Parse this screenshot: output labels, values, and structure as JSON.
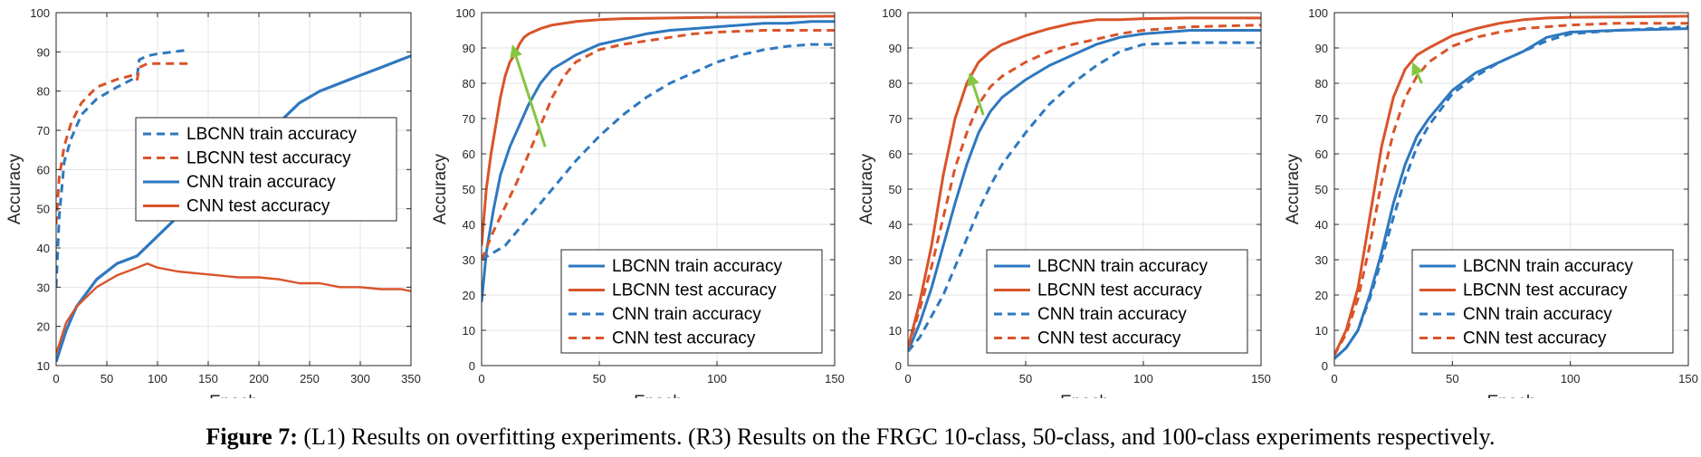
{
  "colors": {
    "lbcnn": "#2e78bf",
    "cnn": "#d9542a",
    "arrow": "#86c540",
    "grid": "#e3e3e3",
    "axis": "#262626"
  },
  "caption": {
    "label": "Figure 7:",
    "text": "(L1) Results on overfitting experiments. (R3) Results on the FRGC 10-class, 50-class, and 100-class experiments respectively."
  },
  "chart_data": [
    {
      "type": "line",
      "xlabel": "Epoch",
      "ylabel": "Accuracy",
      "xlim": [
        0,
        350
      ],
      "ylim": [
        10,
        100
      ],
      "xticks": [
        0,
        50,
        100,
        150,
        200,
        250,
        300,
        350
      ],
      "yticks": [
        10,
        20,
        30,
        40,
        50,
        60,
        70,
        80,
        90,
        100
      ],
      "grid": true,
      "legend_position": "center-right",
      "series": [
        {
          "name": "LBCNN train accuracy",
          "color": "lbcnn",
          "dash": true,
          "width": 3,
          "x": [
            0,
            3,
            8,
            15,
            25,
            40,
            60,
            75,
            80,
            82,
            90,
            100,
            115,
            130
          ],
          "y": [
            30,
            48,
            62,
            68,
            74,
            78,
            81,
            83,
            84,
            88,
            89,
            89.5,
            90,
            90.5
          ]
        },
        {
          "name": "LBCNN test accuracy",
          "color": "cnn",
          "dash": true,
          "width": 3,
          "x": [
            0,
            3,
            8,
            15,
            25,
            40,
            60,
            75,
            80,
            82,
            90,
            100,
            115,
            130
          ],
          "y": [
            46,
            58,
            66,
            72,
            77,
            81,
            83,
            84,
            83,
            86,
            87,
            87,
            87,
            87
          ]
        },
        {
          "name": "CNN train accuracy",
          "color": "lbcnn",
          "dash": false,
          "width": 3.2,
          "x": [
            0,
            10,
            20,
            40,
            60,
            80,
            100,
            120,
            140,
            160,
            180,
            200,
            220,
            240,
            260,
            280,
            300,
            320,
            340,
            350
          ],
          "y": [
            11,
            19,
            25,
            32,
            36,
            38,
            43,
            48,
            52,
            57,
            61,
            66,
            72,
            77,
            80,
            82,
            84,
            86,
            88,
            89
          ]
        },
        {
          "name": "CNN test accuracy",
          "color": "cnn",
          "dash": false,
          "width": 2.4,
          "x": [
            0,
            10,
            20,
            40,
            60,
            80,
            90,
            100,
            120,
            140,
            160,
            180,
            200,
            220,
            240,
            260,
            280,
            300,
            320,
            340,
            350
          ],
          "y": [
            13,
            21,
            25,
            30,
            33,
            35,
            36,
            35,
            34,
            33.5,
            33,
            32.5,
            32.5,
            32,
            31,
            31,
            30,
            30,
            29.5,
            29.5,
            29
          ]
        }
      ],
      "legend_order": [
        0,
        1,
        2,
        3
      ]
    },
    {
      "type": "line",
      "xlabel": "Epoch",
      "ylabel": "Accuracy",
      "xlim": [
        0,
        150
      ],
      "ylim": [
        0,
        100
      ],
      "xticks": [
        0,
        50,
        100,
        150
      ],
      "yticks": [
        0,
        10,
        20,
        30,
        40,
        50,
        60,
        70,
        80,
        90,
        100
      ],
      "grid": true,
      "legend_position": "bottom-right",
      "series": [
        {
          "name": "LBCNN train accuracy",
          "color": "lbcnn",
          "dash": false,
          "width": 3,
          "x": [
            0,
            2,
            5,
            8,
            12,
            16,
            20,
            25,
            30,
            35,
            40,
            50,
            60,
            70,
            80,
            90,
            100,
            110,
            120,
            130,
            140,
            150
          ],
          "y": [
            18,
            32,
            44,
            54,
            62,
            68,
            74,
            80,
            84,
            86,
            88,
            91,
            92.5,
            94,
            95,
            95.5,
            96,
            96.5,
            97,
            97,
            97.5,
            97.5
          ]
        },
        {
          "name": "LBCNN test accuracy",
          "color": "cnn",
          "dash": false,
          "width": 3,
          "x": [
            0,
            2,
            4,
            6,
            8,
            10,
            12,
            14,
            16,
            18,
            20,
            25,
            30,
            40,
            50,
            60,
            80,
            100,
            120,
            150
          ],
          "y": [
            34,
            50,
            60,
            68,
            76,
            82,
            86,
            88,
            91,
            93,
            94,
            95.5,
            96.5,
            97.5,
            98,
            98.3,
            98.5,
            98.7,
            98.8,
            99
          ]
        },
        {
          "name": "CNN train accuracy",
          "color": "lbcnn",
          "dash": true,
          "width": 3,
          "x": [
            0,
            5,
            10,
            15,
            20,
            25,
            30,
            35,
            40,
            50,
            60,
            70,
            80,
            90,
            100,
            110,
            120,
            130,
            140,
            150
          ],
          "y": [
            30,
            32,
            34,
            38,
            42,
            46,
            50,
            54,
            58,
            65,
            71,
            76,
            80,
            83,
            86,
            88,
            89.5,
            90.5,
            91,
            91
          ]
        },
        {
          "name": "CNN test accuracy",
          "color": "cnn",
          "dash": true,
          "width": 3,
          "x": [
            0,
            5,
            10,
            15,
            20,
            25,
            30,
            35,
            40,
            50,
            60,
            70,
            80,
            90,
            100,
            120,
            150
          ],
          "y": [
            30,
            38,
            45,
            52,
            60,
            68,
            76,
            82,
            86,
            89.5,
            91,
            92,
            93,
            94,
            94.5,
            95,
            95
          ]
        }
      ],
      "legend_order": [
        0,
        1,
        2,
        3
      ]
    },
    {
      "type": "line",
      "xlabel": "Epoch",
      "ylabel": "Accuracy",
      "xlim": [
        0,
        150
      ],
      "ylim": [
        0,
        100
      ],
      "xticks": [
        0,
        50,
        100,
        150
      ],
      "yticks": [
        0,
        10,
        20,
        30,
        40,
        50,
        60,
        70,
        80,
        90,
        100
      ],
      "grid": true,
      "legend_position": "bottom-right",
      "series": [
        {
          "name": "LBCNN train accuracy",
          "color": "lbcnn",
          "dash": false,
          "width": 3,
          "x": [
            0,
            5,
            10,
            15,
            20,
            25,
            30,
            35,
            40,
            50,
            60,
            70,
            80,
            90,
            100,
            120,
            150
          ],
          "y": [
            4,
            12,
            22,
            34,
            46,
            57,
            66,
            72,
            76,
            81,
            85,
            88,
            91,
            93,
            94,
            95,
            95
          ]
        },
        {
          "name": "LBCNN test accuracy",
          "color": "cnn",
          "dash": false,
          "width": 3,
          "x": [
            0,
            5,
            10,
            15,
            20,
            25,
            30,
            35,
            40,
            50,
            60,
            70,
            80,
            90,
            100,
            120,
            150
          ],
          "y": [
            5,
            18,
            34,
            54,
            70,
            80,
            86,
            89,
            91,
            93.5,
            95.5,
            97,
            98,
            98,
            98.3,
            98.5,
            98.5
          ]
        },
        {
          "name": "CNN train accuracy",
          "color": "lbcnn",
          "dash": true,
          "width": 3,
          "x": [
            0,
            5,
            10,
            15,
            20,
            25,
            30,
            35,
            40,
            50,
            60,
            70,
            80,
            90,
            100,
            120,
            150
          ],
          "y": [
            4,
            8,
            14,
            20,
            28,
            36,
            44,
            51,
            57,
            66,
            74,
            80,
            85,
            89,
            91,
            91.5,
            91.5
          ]
        },
        {
          "name": "CNN test accuracy",
          "color": "cnn",
          "dash": true,
          "width": 3,
          "x": [
            0,
            5,
            10,
            15,
            20,
            25,
            30,
            35,
            40,
            50,
            60,
            70,
            80,
            90,
            100,
            120,
            150
          ],
          "y": [
            5,
            16,
            28,
            42,
            56,
            66,
            74,
            79,
            82,
            86,
            89,
            91,
            92.5,
            94,
            95,
            96,
            96.5
          ]
        }
      ],
      "legend_order": [
        0,
        1,
        2,
        3
      ]
    },
    {
      "type": "line",
      "xlabel": "Epoch",
      "ylabel": "Accuracy",
      "xlim": [
        0,
        150
      ],
      "ylim": [
        0,
        100
      ],
      "xticks": [
        0,
        50,
        100,
        150
      ],
      "yticks": [
        0,
        10,
        20,
        30,
        40,
        50,
        60,
        70,
        80,
        90,
        100
      ],
      "grid": true,
      "legend_position": "bottom-right",
      "series": [
        {
          "name": "LBCNN train accuracy",
          "color": "lbcnn",
          "dash": false,
          "width": 3,
          "x": [
            0,
            5,
            10,
            15,
            20,
            25,
            30,
            35,
            40,
            50,
            60,
            70,
            80,
            90,
            100,
            120,
            150
          ],
          "y": [
            2,
            5,
            10,
            20,
            32,
            46,
            57,
            65,
            70,
            78,
            83,
            86,
            89,
            93,
            94.5,
            95,
            95.5
          ]
        },
        {
          "name": "LBCNN test accuracy",
          "color": "cnn",
          "dash": false,
          "width": 3,
          "x": [
            0,
            5,
            10,
            15,
            20,
            25,
            30,
            35,
            40,
            50,
            60,
            70,
            80,
            90,
            100,
            120,
            150
          ],
          "y": [
            3,
            10,
            22,
            42,
            62,
            76,
            84,
            88,
            90,
            93.5,
            95.5,
            97,
            98,
            98.5,
            98.7,
            98.8,
            99
          ]
        },
        {
          "name": "CNN train accuracy",
          "color": "lbcnn",
          "dash": true,
          "width": 3,
          "x": [
            0,
            5,
            10,
            15,
            20,
            25,
            30,
            35,
            40,
            50,
            60,
            70,
            80,
            90,
            100,
            120,
            150
          ],
          "y": [
            2,
            5,
            10,
            19,
            30,
            42,
            53,
            62,
            68,
            77,
            82,
            86,
            89,
            92,
            94,
            95,
            96
          ]
        },
        {
          "name": "CNN test accuracy",
          "color": "cnn",
          "dash": true,
          "width": 3,
          "x": [
            0,
            5,
            10,
            15,
            20,
            25,
            30,
            35,
            40,
            50,
            60,
            70,
            80,
            90,
            100,
            120,
            150
          ],
          "y": [
            3,
            9,
            19,
            34,
            52,
            66,
            76,
            82,
            86,
            90.5,
            93,
            94.5,
            95.5,
            96,
            96.5,
            97,
            97
          ]
        }
      ],
      "legend_order": [
        0,
        1,
        2,
        3
      ]
    }
  ]
}
